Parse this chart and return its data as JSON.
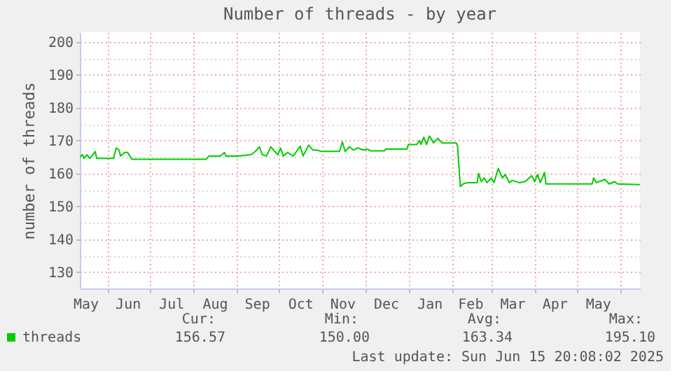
{
  "chart_data": {
    "type": "line",
    "title": "Number of threads - by year",
    "ylabel": "number of threads",
    "xlim": [
      "2024-05-12",
      "2025-06-15"
    ],
    "ylim": [
      125,
      203
    ],
    "xticks": [
      {
        "value": "2024-05-16",
        "label": "May"
      },
      {
        "value": "2024-06-01",
        "label": null
      },
      {
        "value": "2024-06-15",
        "label": "Jun"
      },
      {
        "value": "2024-07-01",
        "label": null
      },
      {
        "value": "2024-07-16",
        "label": "Jul"
      },
      {
        "value": "2024-08-01",
        "label": null
      },
      {
        "value": "2024-08-16",
        "label": "Aug"
      },
      {
        "value": "2024-09-01",
        "label": null
      },
      {
        "value": "2024-09-15",
        "label": "Sep"
      },
      {
        "value": "2024-10-01",
        "label": null
      },
      {
        "value": "2024-10-16",
        "label": "Oct"
      },
      {
        "value": "2024-11-01",
        "label": null
      },
      {
        "value": "2024-11-15",
        "label": "Nov"
      },
      {
        "value": "2024-12-01",
        "label": null
      },
      {
        "value": "2024-12-16",
        "label": "Dec"
      },
      {
        "value": "2025-01-01",
        "label": null
      },
      {
        "value": "2025-01-16",
        "label": "Jan"
      },
      {
        "value": "2025-02-01",
        "label": null
      },
      {
        "value": "2025-02-14",
        "label": "Feb"
      },
      {
        "value": "2025-03-01",
        "label": null
      },
      {
        "value": "2025-03-16",
        "label": "Mar"
      },
      {
        "value": "2025-04-01",
        "label": null
      },
      {
        "value": "2025-04-15",
        "label": "Apr"
      },
      {
        "value": "2025-05-01",
        "label": null
      },
      {
        "value": "2025-05-16",
        "label": "May"
      },
      {
        "value": "2025-06-01",
        "label": null
      }
    ],
    "yticks": [
      130,
      {
        "value": 135,
        "label": null
      },
      140,
      {
        "value": 145,
        "label": null
      },
      150,
      {
        "value": 155,
        "label": null
      },
      160,
      {
        "value": 165,
        "label": null
      },
      170,
      {
        "value": 175,
        "label": null
      },
      180,
      {
        "value": 185,
        "label": null
      },
      190,
      {
        "value": 195,
        "label": null
      },
      200
    ],
    "grid": true,
    "legend": "bottom",
    "annotations": [
      "Cur:",
      "Min:",
      "Avg:",
      "Max:",
      "156.57",
      "150.00",
      "163.34",
      "195.10",
      "Last update: Sun Jun 15 20:08:02 2025"
    ],
    "series": [
      {
        "name": "threads",
        "color": "#00cc00",
        "x": [
          "2024-05-12",
          "2024-05-14",
          "2024-05-15",
          "2024-05-17",
          "2024-05-19",
          "2024-05-20",
          "2024-05-23",
          "2024-05-24",
          "2024-06-05",
          "2024-06-07",
          "2024-06-09",
          "2024-06-10",
          "2024-06-13",
          "2024-06-15",
          "2024-06-18",
          "2024-08-10",
          "2024-08-12",
          "2024-08-20",
          "2024-08-23",
          "2024-08-24",
          "2024-09-01",
          "2024-09-11",
          "2024-09-14",
          "2024-09-17",
          "2024-09-19",
          "2024-09-22",
          "2024-09-25",
          "2024-09-27",
          "2024-09-30",
          "2024-10-02",
          "2024-10-04",
          "2024-10-07",
          "2024-10-11",
          "2024-10-16",
          "2024-10-18",
          "2024-10-22",
          "2024-10-25",
          "2024-10-28",
          "2024-10-31",
          "2024-11-13",
          "2024-11-15",
          "2024-11-17",
          "2024-11-20",
          "2024-11-23",
          "2024-11-26",
          "2024-11-30",
          "2024-12-03",
          "2024-12-05",
          "2024-12-15",
          "2024-12-16",
          "2024-12-31",
          "2025-01-01",
          "2025-01-07",
          "2025-01-09",
          "2025-01-10",
          "2025-01-12",
          "2025-01-14",
          "2025-01-16",
          "2025-01-19",
          "2025-01-22",
          "2025-01-25",
          "2025-02-04",
          "2025-02-05",
          "2025-02-07",
          "2025-02-09",
          "2025-02-12",
          "2025-02-19",
          "2025-02-20",
          "2025-02-22",
          "2025-02-24",
          "2025-02-26",
          "2025-03-01",
          "2025-03-03",
          "2025-03-06",
          "2025-03-09",
          "2025-03-11",
          "2025-03-14",
          "2025-03-16",
          "2025-03-21",
          "2025-03-25",
          "2025-03-30",
          "2025-04-01",
          "2025-04-03",
          "2025-04-05",
          "2025-04-08",
          "2025-04-09",
          "2025-05-12",
          "2025-05-13",
          "2025-05-15",
          "2025-05-21",
          "2025-05-24",
          "2025-05-28",
          "2025-05-30",
          "2025-06-15"
        ],
        "values": [
          165.0,
          165.7,
          164.6,
          165.7,
          164.6,
          165.0,
          166.7,
          164.6,
          164.6,
          167.8,
          167.1,
          165.3,
          166.4,
          166.4,
          164.3,
          164.3,
          165.3,
          165.3,
          166.4,
          165.3,
          165.3,
          165.7,
          166.7,
          168.1,
          165.7,
          165.3,
          168.1,
          167.1,
          165.7,
          167.7,
          165.3,
          166.4,
          165.3,
          168.3,
          165.3,
          168.6,
          167.1,
          167.1,
          166.7,
          166.7,
          169.6,
          166.7,
          168.1,
          167.1,
          167.8,
          167.1,
          167.4,
          166.9,
          166.9,
          167.4,
          167.4,
          168.8,
          168.8,
          170.0,
          168.8,
          171.0,
          168.8,
          171.4,
          169.3,
          170.7,
          169.3,
          169.3,
          168.6,
          156.0,
          156.8,
          157.2,
          157.2,
          160.0,
          157.5,
          158.6,
          157.2,
          158.6,
          157.2,
          161.5,
          158.6,
          159.7,
          157.2,
          157.9,
          157.2,
          157.5,
          159.3,
          157.5,
          159.7,
          157.2,
          160.3,
          156.8,
          156.8,
          158.6,
          157.2,
          158.2,
          156.8,
          157.5,
          156.8,
          156.6
        ]
      }
    ]
  }
}
